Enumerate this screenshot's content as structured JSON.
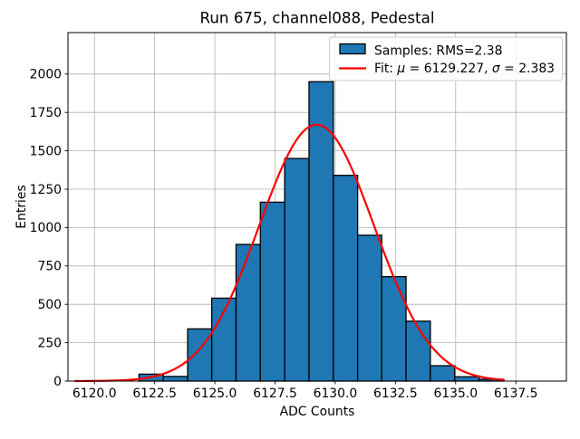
{
  "chart_data": {
    "type": "bar",
    "subtype": "histogram-with-gaussian-fit",
    "title": "Run 675, channel088, Pedestal",
    "xlabel": "ADC Counts",
    "ylabel": "Entries",
    "bin_edges": [
      6121.85,
      6122.86,
      6123.87,
      6124.87,
      6125.88,
      6126.89,
      6127.9,
      6128.91,
      6129.92,
      6130.93,
      6131.93,
      6132.94,
      6133.95,
      6134.96,
      6135.97,
      6136.97
    ],
    "counts": [
      45,
      30,
      340,
      540,
      890,
      1165,
      1450,
      1950,
      1340,
      950,
      680,
      390,
      100,
      28,
      12
    ],
    "fit": {
      "mu": 6129.227,
      "sigma": 2.383,
      "amplitude": 1670,
      "x_start": 6119.2,
      "x_end": 6137.0,
      "color": "#ff0000"
    },
    "legend": [
      {
        "swatch": "patch",
        "label": "Samples: RMS=2.38"
      },
      {
        "swatch": "line",
        "label": "Fit: μ = 6129.227, σ = 2.383"
      }
    ],
    "legend_position": "upper right",
    "xticks": [
      6120.0,
      6122.5,
      6125.0,
      6127.5,
      6130.0,
      6132.5,
      6135.0,
      6137.5
    ],
    "xtick_labels": [
      "6120.0",
      "6122.5",
      "6125.0",
      "6127.5",
      "6130.0",
      "6132.5",
      "6135.0",
      "6137.5"
    ],
    "yticks": [
      0,
      250,
      500,
      750,
      1000,
      1250,
      1500,
      1750,
      2000
    ],
    "ytick_labels": [
      "0",
      "250",
      "500",
      "750",
      "1000",
      "1250",
      "1500",
      "1750",
      "2000"
    ],
    "xlim": [
      6118.9,
      6139.6
    ],
    "ylim": [
      0,
      2270
    ],
    "grid": true,
    "colors": {
      "bar_fill": "#1f77b4",
      "bar_edge": "#000000",
      "fit_line": "#ff0000",
      "grid": "#b0b0b0",
      "text": "#000000",
      "background": "#ffffff"
    }
  }
}
